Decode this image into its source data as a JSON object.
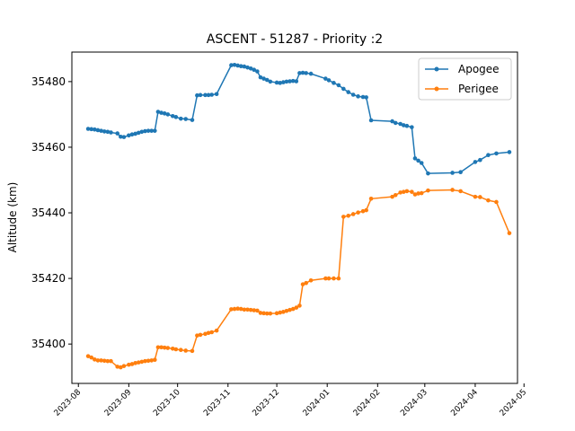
{
  "chart_data": {
    "type": "line",
    "title": "ASCENT - 51287 - Priority :2",
    "xlabel": "",
    "ylabel": "Altitude (km)",
    "x_type": "date",
    "xlim": [
      "2023-07-28",
      "2024-04-27"
    ],
    "ylim": [
      35388,
      35489
    ],
    "x_ticks": [
      "2023-08",
      "2023-09",
      "2023-10",
      "2023-11",
      "2023-12",
      "2024-01",
      "2024-02",
      "2024-03",
      "2024-04",
      "2024-05"
    ],
    "x_tick_dates": [
      "2023-08-01",
      "2023-09-01",
      "2023-10-01",
      "2023-11-01",
      "2023-12-01",
      "2024-01-01",
      "2024-02-01",
      "2024-03-01",
      "2024-04-01",
      "2024-05-01"
    ],
    "y_ticks": [
      35400,
      35420,
      35440,
      35460,
      35480
    ],
    "grid": false,
    "legend": "top-right",
    "series": [
      {
        "name": "Apogee",
        "color": "#1f77b4",
        "x": [
          "2023-08-07",
          "2023-08-09",
          "2023-08-11",
          "2023-08-13",
          "2023-08-15",
          "2023-08-17",
          "2023-08-19",
          "2023-08-21",
          "2023-08-25",
          "2023-08-27",
          "2023-08-29",
          "2023-09-01",
          "2023-09-03",
          "2023-09-05",
          "2023-09-07",
          "2023-09-09",
          "2023-09-11",
          "2023-09-13",
          "2023-09-15",
          "2023-09-17",
          "2023-09-19",
          "2023-09-21",
          "2023-09-23",
          "2023-09-25",
          "2023-09-28",
          "2023-09-30",
          "2023-10-03",
          "2023-10-06",
          "2023-10-10",
          "2023-10-13",
          "2023-10-15",
          "2023-10-18",
          "2023-10-20",
          "2023-10-22",
          "2023-10-25",
          "2023-11-03",
          "2023-11-05",
          "2023-11-07",
          "2023-11-09",
          "2023-11-11",
          "2023-11-13",
          "2023-11-15",
          "2023-11-17",
          "2023-11-19",
          "2023-11-21",
          "2023-11-23",
          "2023-11-25",
          "2023-11-27",
          "2023-12-01",
          "2023-12-03",
          "2023-12-05",
          "2023-12-07",
          "2023-12-09",
          "2023-12-11",
          "2023-12-13",
          "2023-12-15",
          "2023-12-17",
          "2023-12-19",
          "2023-12-22",
          "2023-12-31",
          "2024-01-02",
          "2024-01-05",
          "2024-01-08",
          "2024-01-11",
          "2024-01-14",
          "2024-01-17",
          "2024-01-20",
          "2024-01-23",
          "2024-01-25",
          "2024-01-28",
          "2024-02-10",
          "2024-02-12",
          "2024-02-15",
          "2024-02-17",
          "2024-02-19",
          "2024-02-22",
          "2024-02-24",
          "2024-02-26",
          "2024-02-28",
          "2024-03-03",
          "2024-03-18",
          "2024-03-23",
          "2024-04-01",
          "2024-04-04",
          "2024-04-09",
          "2024-04-14",
          "2024-04-22"
        ],
        "values": [
          35465.6,
          35465.5,
          35465.4,
          35465.2,
          35465.0,
          35464.8,
          35464.7,
          35464.5,
          35464.2,
          35463.2,
          35463.1,
          35463.6,
          35463.9,
          35464.1,
          35464.4,
          35464.7,
          35464.9,
          35465.0,
          35465.0,
          35465.0,
          35470.8,
          35470.5,
          35470.3,
          35470.0,
          35469.5,
          35469.2,
          35468.7,
          35468.6,
          35468.3,
          35475.8,
          35475.9,
          35475.9,
          35475.9,
          35476.0,
          35476.2,
          35485.0,
          35485.1,
          35484.9,
          35484.7,
          35484.6,
          35484.3,
          35484.0,
          35483.6,
          35483.1,
          35481.3,
          35480.9,
          35480.5,
          35480.0,
          35479.7,
          35479.6,
          35479.8,
          35480.0,
          35480.1,
          35480.2,
          35480.1,
          35482.6,
          35482.7,
          35482.6,
          35482.4,
          35480.9,
          35480.4,
          35479.6,
          35478.9,
          35477.8,
          35476.8,
          35476.0,
          35475.5,
          35475.3,
          35475.2,
          35468.2,
          35467.9,
          35467.4,
          35467.1,
          35466.7,
          35466.5,
          35466.1,
          35456.6,
          35455.9,
          35455.2,
          35452.0,
          35452.2,
          35452.4,
          35455.5,
          35456.1,
          35457.6,
          35458.1,
          35458.5
        ]
      },
      {
        "name": "Perigee",
        "color": "#ff7f0e",
        "x": [
          "2023-08-07",
          "2023-08-09",
          "2023-08-11",
          "2023-08-13",
          "2023-08-15",
          "2023-08-17",
          "2023-08-19",
          "2023-08-21",
          "2023-08-25",
          "2023-08-27",
          "2023-08-29",
          "2023-09-01",
          "2023-09-03",
          "2023-09-05",
          "2023-09-07",
          "2023-09-09",
          "2023-09-11",
          "2023-09-13",
          "2023-09-15",
          "2023-09-17",
          "2023-09-19",
          "2023-09-21",
          "2023-09-23",
          "2023-09-25",
          "2023-09-28",
          "2023-09-30",
          "2023-10-03",
          "2023-10-06",
          "2023-10-10",
          "2023-10-13",
          "2023-10-15",
          "2023-10-18",
          "2023-10-20",
          "2023-10-22",
          "2023-10-25",
          "2023-11-03",
          "2023-11-05",
          "2023-11-07",
          "2023-11-09",
          "2023-11-11",
          "2023-11-13",
          "2023-11-15",
          "2023-11-17",
          "2023-11-19",
          "2023-11-21",
          "2023-11-23",
          "2023-11-25",
          "2023-11-27",
          "2023-12-01",
          "2023-12-03",
          "2023-12-05",
          "2023-12-07",
          "2023-12-09",
          "2023-12-11",
          "2023-12-13",
          "2023-12-15",
          "2023-12-17",
          "2023-12-19",
          "2023-12-22",
          "2023-12-31",
          "2024-01-02",
          "2024-01-05",
          "2024-01-08",
          "2024-01-11",
          "2024-01-14",
          "2024-01-17",
          "2024-01-20",
          "2024-01-23",
          "2024-01-25",
          "2024-01-28",
          "2024-02-10",
          "2024-02-12",
          "2024-02-15",
          "2024-02-17",
          "2024-02-19",
          "2024-02-22",
          "2024-02-24",
          "2024-02-26",
          "2024-02-28",
          "2024-03-03",
          "2024-03-18",
          "2024-03-23",
          "2024-04-01",
          "2024-04-04",
          "2024-04-09",
          "2024-04-14",
          "2024-04-22"
        ],
        "values": [
          35396.3,
          35395.9,
          35395.3,
          35395.0,
          35395.0,
          35394.9,
          35394.8,
          35394.8,
          35393.1,
          35392.9,
          35393.3,
          35393.7,
          35393.9,
          35394.2,
          35394.4,
          35394.6,
          35394.8,
          35394.9,
          35395.0,
          35395.2,
          35399.0,
          35399.0,
          35398.9,
          35398.8,
          35398.6,
          35398.4,
          35398.2,
          35398.0,
          35397.9,
          35402.6,
          35402.8,
          35403.1,
          35403.4,
          35403.6,
          35404.1,
          35410.6,
          35410.7,
          35410.8,
          35410.7,
          35410.5,
          35410.5,
          35410.4,
          35410.3,
          35410.2,
          35409.5,
          35409.4,
          35409.3,
          35409.3,
          35409.4,
          35409.6,
          35409.8,
          35410.1,
          35410.4,
          35410.7,
          35411.1,
          35411.7,
          35418.2,
          35418.6,
          35419.4,
          35420.0,
          35420.0,
          35420.0,
          35420.0,
          35438.8,
          35439.1,
          35439.6,
          35440.1,
          35440.5,
          35440.8,
          35444.3,
          35444.9,
          35445.4,
          35446.2,
          35446.4,
          35446.6,
          35446.4,
          35445.6,
          35445.9,
          35446.0,
          35446.8,
          35447.0,
          35446.6,
          35444.9,
          35444.8,
          35443.8,
          35443.3,
          35433.8
        ]
      }
    ]
  }
}
